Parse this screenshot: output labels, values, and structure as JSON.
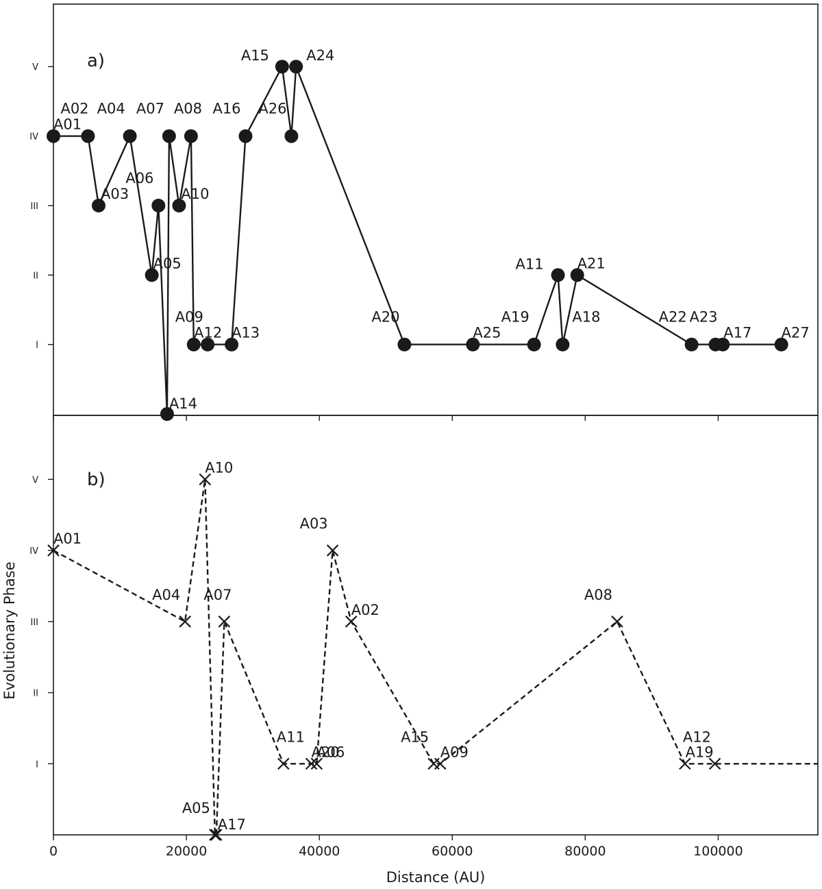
{
  "chart_data": [
    {
      "type": "line",
      "panel_label": "a)",
      "marker": "circle",
      "line_style": "solid",
      "color": "#1a1a1a",
      "ylabel": "",
      "points": [
        {
          "label": "A01",
          "x": 0,
          "y": 4
        },
        {
          "label": "A02",
          "x": 5200,
          "y": 4
        },
        {
          "label": "A03",
          "x": 6800,
          "y": 3
        },
        {
          "label": "A04",
          "x": 11500,
          "y": 4
        },
        {
          "label": "A05",
          "x": 14800,
          "y": 2
        },
        {
          "label": "A06",
          "x": 15800,
          "y": 3
        },
        {
          "label": "A14",
          "x": 17100,
          "y": 0
        },
        {
          "label": "A07",
          "x": 17400,
          "y": 4
        },
        {
          "label": "A10",
          "x": 18900,
          "y": 3
        },
        {
          "label": "A08",
          "x": 20700,
          "y": 4
        },
        {
          "label": "A09",
          "x": 21100,
          "y": 1
        },
        {
          "label": "A12",
          "x": 23200,
          "y": 1
        },
        {
          "label": "A13",
          "x": 26800,
          "y": 1
        },
        {
          "label": "A16",
          "x": 28900,
          "y": 4
        },
        {
          "label": "A15",
          "x": 34400,
          "y": 5
        },
        {
          "label": "A26",
          "x": 35800,
          "y": 4
        },
        {
          "label": "A24",
          "x": 36500,
          "y": 5
        },
        {
          "label": "A20",
          "x": 52800,
          "y": 1
        },
        {
          "label": "A25",
          "x": 63100,
          "y": 1
        },
        {
          "label": "A19",
          "x": 72300,
          "y": 1
        },
        {
          "label": "A11",
          "x": 75900,
          "y": 2
        },
        {
          "label": "A18",
          "x": 76600,
          "y": 1
        },
        {
          "label": "A21",
          "x": 78800,
          "y": 2
        },
        {
          "label": "A22",
          "x": 96000,
          "y": 1
        },
        {
          "label": "A23",
          "x": 99600,
          "y": 1
        },
        {
          "label": "A17",
          "x": 100700,
          "y": 1
        },
        {
          "label": "A27",
          "x": 109500,
          "y": 1
        }
      ],
      "yticks": [
        {
          "v": 1,
          "label": "I"
        },
        {
          "v": 2,
          "label": "II"
        },
        {
          "v": 3,
          "label": "III"
        },
        {
          "v": 4,
          "label": "IV"
        },
        {
          "v": 5,
          "label": "V"
        }
      ],
      "ylim": [
        0,
        5.9
      ],
      "xlim": [
        0,
        115000
      ]
    },
    {
      "type": "line",
      "panel_label": "b)",
      "marker": "x",
      "line_style": "dashed",
      "color": "#1a1a1a",
      "xlabel": "Distance (AU)",
      "ylabel": "Evolutionary Phase",
      "xticks": [
        0,
        20000,
        40000,
        60000,
        80000,
        100000
      ],
      "extend_to_xmax": true,
      "points": [
        {
          "label": "A01",
          "x": 0,
          "y": 4
        },
        {
          "label": "A04",
          "x": 19800,
          "y": 3
        },
        {
          "label": "A10",
          "x": 22800,
          "y": 5
        },
        {
          "label": "A05",
          "x": 24300,
          "y": 0
        },
        {
          "label": "A17",
          "x": 24500,
          "y": 0
        },
        {
          "label": "A07",
          "x": 25700,
          "y": 3
        },
        {
          "label": "A11",
          "x": 34600,
          "y": 1
        },
        {
          "label": "A20",
          "x": 38800,
          "y": 1
        },
        {
          "label": "A06",
          "x": 39600,
          "y": 1
        },
        {
          "label": "A03",
          "x": 42000,
          "y": 4
        },
        {
          "label": "A02",
          "x": 44800,
          "y": 3
        },
        {
          "label": "A15",
          "x": 57200,
          "y": 1
        },
        {
          "label": "A09",
          "x": 58200,
          "y": 1
        },
        {
          "label": "A08",
          "x": 84800,
          "y": 3
        },
        {
          "label": "A12",
          "x": 95000,
          "y": 1
        },
        {
          "label": "A19",
          "x": 99500,
          "y": 1
        }
      ],
      "yticks": [
        {
          "v": 1,
          "label": "I"
        },
        {
          "v": 2,
          "label": "II"
        },
        {
          "v": 3,
          "label": "III"
        },
        {
          "v": 4,
          "label": "IV"
        },
        {
          "v": 5,
          "label": "V"
        }
      ],
      "ylim": [
        0,
        5.9
      ],
      "xlim": [
        0,
        115000
      ]
    }
  ]
}
